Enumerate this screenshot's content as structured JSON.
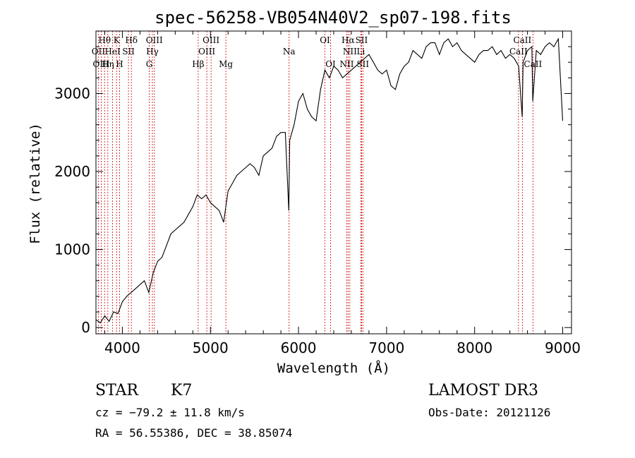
{
  "chart_data": {
    "type": "line",
    "title": "spec-56258-VB054N40V2_sp07-198.fits",
    "xlabel": "Wavelength (Å)",
    "ylabel": "Flux (relative)",
    "xlim": [
      3700,
      9100
    ],
    "ylim": [
      -80,
      3800
    ],
    "x_ticks": [
      4000,
      5000,
      6000,
      7000,
      8000,
      9000
    ],
    "y_ticks": [
      0,
      1000,
      2000,
      3000
    ],
    "series": [
      {
        "name": "flux",
        "x": [
          3700,
          3750,
          3800,
          3850,
          3900,
          3950,
          4000,
          4050,
          4100,
          4150,
          4200,
          4250,
          4300,
          4350,
          4400,
          4450,
          4500,
          4550,
          4600,
          4650,
          4700,
          4750,
          4800,
          4850,
          4900,
          4950,
          5000,
          5050,
          5100,
          5150,
          5200,
          5250,
          5300,
          5350,
          5400,
          5450,
          5500,
          5550,
          5600,
          5650,
          5700,
          5750,
          5800,
          5850,
          5890,
          5900,
          5950,
          6000,
          6050,
          6100,
          6150,
          6200,
          6250,
          6300,
          6350,
          6400,
          6450,
          6500,
          6550,
          6600,
          6650,
          6700,
          6750,
          6800,
          6850,
          6900,
          6950,
          7000,
          7050,
          7100,
          7150,
          7200,
          7250,
          7300,
          7350,
          7400,
          7450,
          7500,
          7550,
          7600,
          7650,
          7700,
          7750,
          7800,
          7850,
          7900,
          7950,
          8000,
          8050,
          8100,
          8150,
          8200,
          8250,
          8300,
          8350,
          8400,
          8450,
          8500,
          8540,
          8550,
          8600,
          8650,
          8660,
          8700,
          8750,
          8800,
          8850,
          8900,
          8950,
          9000
        ],
        "values": [
          100,
          60,
          150,
          80,
          200,
          180,
          330,
          400,
          450,
          500,
          550,
          600,
          450,
          700,
          850,
          900,
          1050,
          1200,
          1250,
          1300,
          1350,
          1450,
          1550,
          1700,
          1650,
          1700,
          1600,
          1550,
          1500,
          1350,
          1750,
          1850,
          1950,
          2000,
          2050,
          2100,
          2050,
          1950,
          2200,
          2250,
          2300,
          2450,
          2500,
          2500,
          1500,
          2400,
          2600,
          2900,
          3000,
          2800,
          2700,
          2650,
          3050,
          3300,
          3200,
          3350,
          3300,
          3200,
          3250,
          3300,
          3350,
          3400,
          3450,
          3500,
          3400,
          3300,
          3250,
          3300,
          3100,
          3050,
          3250,
          3350,
          3400,
          3550,
          3500,
          3450,
          3600,
          3650,
          3650,
          3500,
          3650,
          3700,
          3600,
          3650,
          3550,
          3500,
          3450,
          3400,
          3500,
          3550,
          3550,
          3600,
          3500,
          3550,
          3450,
          3500,
          3450,
          3350,
          2700,
          3400,
          3550,
          3600,
          2900,
          3550,
          3500,
          3600,
          3650,
          3600,
          3700,
          2650
        ]
      }
    ],
    "line_markers": [
      {
        "label": "Hθ",
        "x": 3798,
        "row": 1
      },
      {
        "label": "OII",
        "x": 3727,
        "row": 2
      },
      {
        "label": "OIII",
        "x": 3760,
        "row": 3
      },
      {
        "label": "Hη",
        "x": 3835,
        "row": 3
      },
      {
        "label": "K",
        "x": 3934,
        "row": 1
      },
      {
        "label": "HeI",
        "x": 3889,
        "row": 2
      },
      {
        "label": "H",
        "x": 3968,
        "row": 3
      },
      {
        "label": "Hδ",
        "x": 4102,
        "row": 1
      },
      {
        "label": "SII",
        "x": 4069,
        "row": 2
      },
      {
        "label": "OIII",
        "x": 4363,
        "row": 1
      },
      {
        "label": "Hγ",
        "x": 4341,
        "row": 2
      },
      {
        "label": "G",
        "x": 4305,
        "row": 3
      },
      {
        "label": "Hβ",
        "x": 4861,
        "row": 3
      },
      {
        "label": "OIII",
        "x": 5007,
        "row": 1
      },
      {
        "label": "OIII",
        "x": 4959,
        "row": 2
      },
      {
        "label": "Mg",
        "x": 5175,
        "row": 3
      },
      {
        "label": "Na",
        "x": 5893,
        "row": 2
      },
      {
        "label": "OI",
        "x": 6300,
        "row": 1
      },
      {
        "label": "OI",
        "x": 6364,
        "row": 3
      },
      {
        "label": "Hα",
        "x": 6563,
        "row": 1
      },
      {
        "label": "SII",
        "x": 6716,
        "row": 1
      },
      {
        "label": "NII",
        "x": 6583,
        "row": 2
      },
      {
        "label": "Li",
        "x": 6708,
        "row": 2
      },
      {
        "label": "NII",
        "x": 6548,
        "row": 3
      },
      {
        "label": "SII",
        "x": 6731,
        "row": 3
      },
      {
        "label": "CaII",
        "x": 8542,
        "row": 1
      },
      {
        "label": "CaII",
        "x": 8498,
        "row": 2
      },
      {
        "label": "CaII",
        "x": 8662,
        "row": 3
      }
    ]
  },
  "info": {
    "object_class": "STAR",
    "subclass": "K7",
    "redshift": "cz = −79.2 ± 11.8 km/s",
    "coords": "RA =  56.55386, DEC =  38.85074",
    "survey": "LAMOST DR3",
    "obs_date": "Obs-Date: 20121126"
  },
  "colors": {
    "line_marker": "#cc0000",
    "spectrum": "#000000"
  }
}
